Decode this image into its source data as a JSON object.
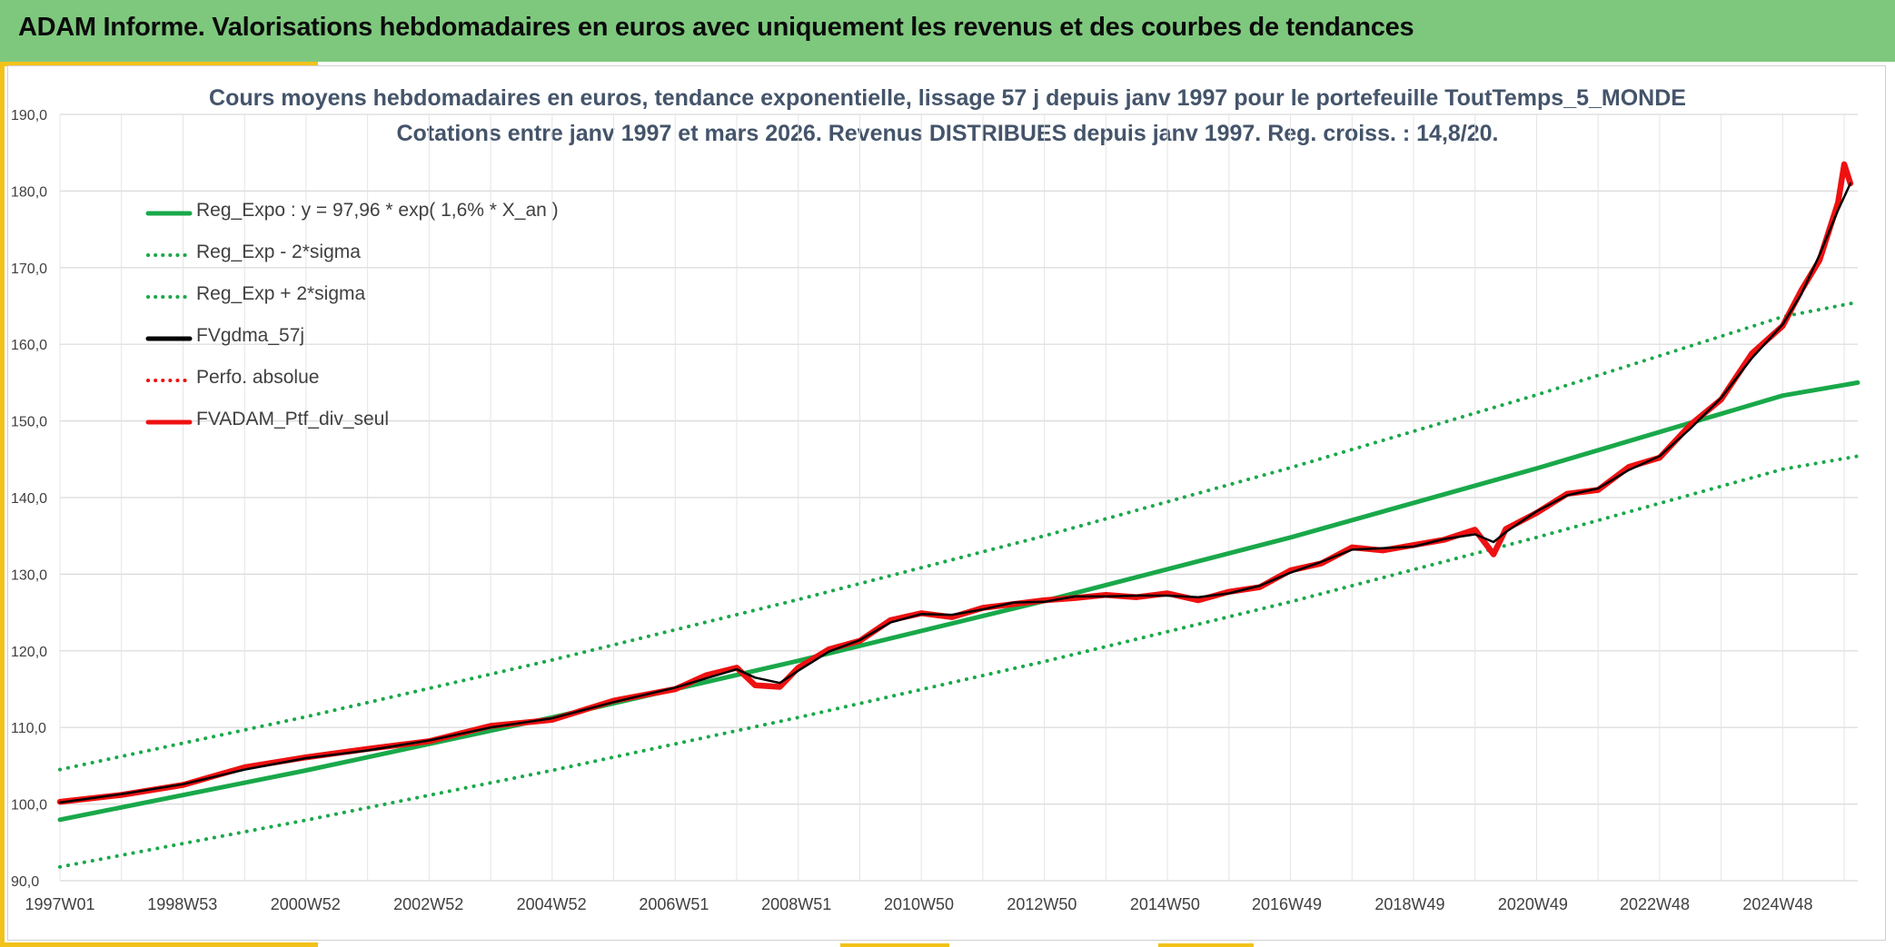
{
  "header": {
    "title": "ADAM Informe. Valorisations hebdomadaires en euros avec uniquement les revenus et des courbes de tendances"
  },
  "colors": {
    "banner": "#7ec87e",
    "accent": "#f2c21b",
    "trend": "#19a84a",
    "smoothed": "#000000",
    "portfolio": "#ee1111",
    "title_text": "#44546a"
  },
  "chart_data": {
    "type": "line",
    "title_line1": "Cours moyens hebdomadaires en euros, tendance exponentielle, lissage 57 j depuis janv 1997 pour le portefeuille ToutTemps_5_MONDE",
    "title_line2": "Cotations entre janv 1997 et mars 2026. Revenus DISTRIBUES depuis janv 1997. Reg. croiss. : 14,8/20.",
    "xlabel": "",
    "ylabel": "",
    "ylim": [
      90,
      190
    ],
    "yticks": [
      "90,0",
      "100,0",
      "110,0",
      "120,0",
      "130,0",
      "140,0",
      "150,0",
      "160,0",
      "170,0",
      "180,0",
      "190,0"
    ],
    "xlim": [
      1997.0,
      2026.22
    ],
    "xticks": [
      {
        "x": 1997.0,
        "label": "1997W01"
      },
      {
        "x": 1998.99,
        "label": "1998W53"
      },
      {
        "x": 2000.99,
        "label": "2000W52"
      },
      {
        "x": 2002.99,
        "label": "2002W52"
      },
      {
        "x": 2004.99,
        "label": "2004W52"
      },
      {
        "x": 2006.98,
        "label": "2006W51"
      },
      {
        "x": 2008.97,
        "label": "2008W51"
      },
      {
        "x": 2010.96,
        "label": "2010W50"
      },
      {
        "x": 2012.96,
        "label": "2012W50"
      },
      {
        "x": 2014.96,
        "label": "2014W50"
      },
      {
        "x": 2016.94,
        "label": "2016W49"
      },
      {
        "x": 2018.94,
        "label": "2018W49"
      },
      {
        "x": 2020.94,
        "label": "2020W49"
      },
      {
        "x": 2022.92,
        "label": "2022W48"
      },
      {
        "x": 2024.92,
        "label": "2024W48"
      }
    ],
    "grid": true,
    "legend_position": "upper-left",
    "series": [
      {
        "name": "Reg_Expo : y = 97,96 * exp( 1,6% *  X_an )",
        "style": "solid",
        "color": "#19a84a",
        "x": [
          1997.0,
          2001.0,
          2005.0,
          2009.0,
          2013.0,
          2017.0,
          2021.0,
          2025.0,
          2026.22
        ],
        "y": [
          97.96,
          104.4,
          111.3,
          118.7,
          126.5,
          134.8,
          143.8,
          153.3,
          155.0
        ]
      },
      {
        "name": "Reg_Exp - 2*sigma",
        "style": "dotted",
        "color": "#19a84a",
        "x": [
          1997.0,
          2001.0,
          2005.0,
          2009.0,
          2013.0,
          2017.0,
          2021.0,
          2025.0,
          2026.22
        ],
        "y": [
          91.8,
          97.9,
          104.4,
          111.3,
          118.6,
          126.4,
          134.8,
          143.7,
          145.4
        ]
      },
      {
        "name": "Reg_Exp + 2*sigma",
        "style": "dotted",
        "color": "#19a84a",
        "x": [
          1997.0,
          2001.0,
          2005.0,
          2009.0,
          2013.0,
          2017.0,
          2021.0,
          2025.0,
          2026.22
        ],
        "y": [
          104.5,
          111.4,
          118.8,
          126.7,
          135.0,
          143.9,
          153.4,
          163.6,
          165.5
        ]
      },
      {
        "name": "FVgdma_57j",
        "style": "solid",
        "color": "#000000",
        "x": [
          1997.0,
          1998.0,
          1999.0,
          2000.0,
          2001.0,
          2002.0,
          2003.0,
          2004.0,
          2005.0,
          2006.0,
          2007.0,
          2007.5,
          2008.0,
          2008.3,
          2008.7,
          2009.0,
          2009.5,
          2010.0,
          2010.5,
          2011.0,
          2011.5,
          2012.0,
          2012.5,
          2013.0,
          2013.5,
          2014.0,
          2014.5,
          2015.0,
          2015.5,
          2016.0,
          2016.5,
          2017.0,
          2017.5,
          2018.0,
          2018.5,
          2019.0,
          2019.5,
          2020.0,
          2020.3,
          2020.5,
          2021.0,
          2021.5,
          2022.0,
          2022.5,
          2023.0,
          2023.5,
          2024.0,
          2024.5,
          2025.0,
          2025.3,
          2025.6,
          2025.9,
          2026.1
        ],
        "y": [
          100.2,
          101.3,
          102.6,
          104.5,
          106.0,
          107.0,
          108.3,
          110.0,
          111.2,
          113.3,
          115.2,
          116.4,
          117.6,
          116.5,
          115.8,
          117.4,
          119.9,
          121.4,
          123.7,
          124.8,
          124.7,
          125.4,
          126.3,
          126.4,
          127.1,
          127.1,
          127.2,
          127.2,
          127.0,
          127.5,
          128.5,
          130.2,
          131.6,
          133.2,
          133.4,
          133.6,
          134.6,
          135.2,
          134.2,
          135.5,
          138.2,
          140.3,
          141.2,
          143.6,
          145.4,
          149.0,
          153.0,
          158.2,
          162.6,
          166.5,
          171.7,
          177.5,
          181.0
        ]
      },
      {
        "name": "Perfo. absolue",
        "style": "dotted",
        "color": "#ee1111",
        "x": [],
        "y": []
      },
      {
        "name": "FVADAM_Ptf_div_seul",
        "style": "solid",
        "color": "#ee1111",
        "x": [
          1997.0,
          1998.0,
          1999.0,
          2000.0,
          2001.0,
          2002.0,
          2003.0,
          2004.0,
          2005.0,
          2006.0,
          2007.0,
          2007.5,
          2008.0,
          2008.3,
          2008.7,
          2009.0,
          2009.5,
          2010.0,
          2010.5,
          2011.0,
          2011.5,
          2012.0,
          2012.5,
          2013.0,
          2013.5,
          2014.0,
          2014.5,
          2015.0,
          2015.5,
          2016.0,
          2016.5,
          2017.0,
          2017.5,
          2018.0,
          2018.5,
          2019.0,
          2019.5,
          2020.0,
          2020.3,
          2020.5,
          2021.0,
          2021.5,
          2022.0,
          2022.5,
          2023.0,
          2023.5,
          2024.0,
          2024.5,
          2025.0,
          2025.3,
          2025.6,
          2025.9,
          2026.0,
          2026.1
        ],
        "y": [
          100.3,
          101.2,
          102.5,
          104.8,
          106.1,
          107.2,
          108.2,
          110.2,
          111.0,
          113.5,
          115.0,
          116.8,
          117.8,
          115.5,
          115.3,
          117.8,
          120.2,
          121.3,
          124.0,
          124.9,
          124.4,
          125.6,
          126.1,
          126.6,
          126.9,
          127.3,
          127.0,
          127.5,
          126.6,
          127.7,
          128.3,
          130.5,
          131.4,
          133.5,
          133.1,
          133.8,
          134.5,
          135.8,
          132.6,
          135.9,
          138.0,
          140.5,
          141.0,
          144.0,
          145.2,
          149.5,
          152.8,
          158.8,
          162.4,
          167.0,
          171.0,
          178.5,
          183.5,
          181.0
        ]
      }
    ]
  }
}
